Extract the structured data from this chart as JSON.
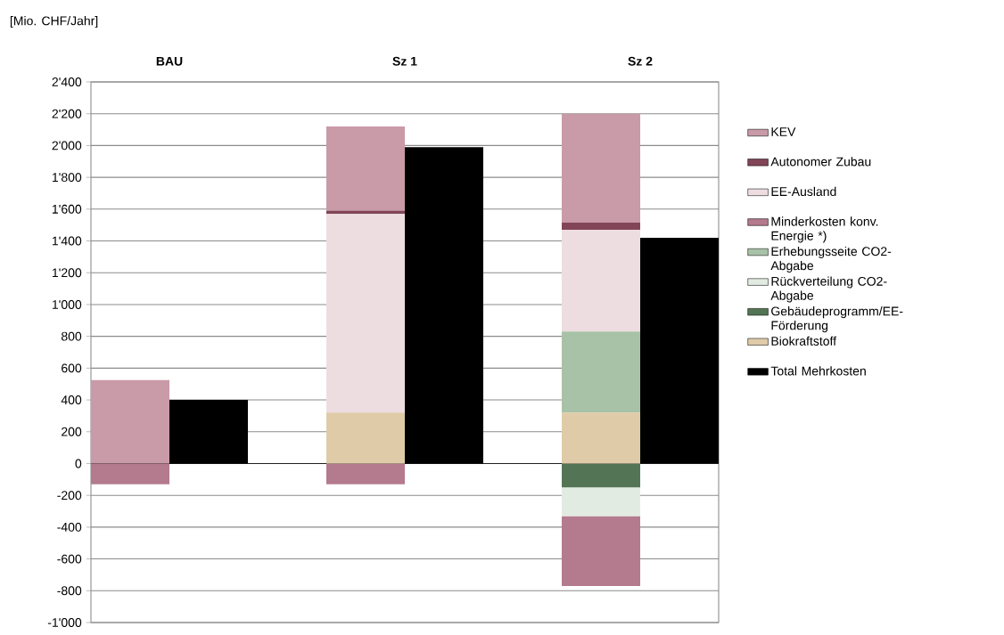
{
  "chart_data": {
    "type": "bar",
    "stacked": true,
    "ylabel": "[Mio. CHF/Jahr]",
    "categories": [
      "BAU",
      null,
      null,
      "Sz 1",
      null,
      null,
      "Sz 2",
      null
    ],
    "series": [
      {
        "name": "Biokraftstoff",
        "color": "#dfcba8",
        "values": [
          null,
          null,
          null,
          320,
          null,
          null,
          320,
          null
        ]
      },
      {
        "name": "Gebäudeprogramm/EE-Förderung",
        "color": "#547555",
        "values": [
          null,
          null,
          null,
          null,
          null,
          null,
          -150,
          null
        ]
      },
      {
        "name": "Rückverteilung CO2-Abgabe",
        "color": "#e2ebe2",
        "values": [
          null,
          null,
          null,
          null,
          null,
          null,
          -180,
          null
        ]
      },
      {
        "name": "Erhebungsseite CO2-Abgabe",
        "color": "#a8c2a8",
        "values": [
          null,
          null,
          null,
          null,
          null,
          null,
          510,
          null
        ]
      },
      {
        "name": "Minderkosten konv. Energie *)",
        "color": "#b47a8e",
        "values": [
          -130,
          null,
          null,
          -130,
          null,
          null,
          -440,
          null
        ]
      },
      {
        "name": "EE-Ausland",
        "color": "#eddde1",
        "values": [
          null,
          null,
          null,
          1250,
          null,
          null,
          640,
          null
        ]
      },
      {
        "name": "Autonomer Zubau",
        "color": "#824558",
        "values": [
          null,
          null,
          null,
          20,
          null,
          null,
          45,
          null
        ]
      },
      {
        "name": "KEV",
        "color": "#c99aa8",
        "values": [
          525,
          null,
          null,
          530,
          null,
          null,
          685,
          null
        ]
      },
      {
        "name": "Total Mehrkosten",
        "color": "#000000",
        "values": [
          null,
          400,
          null,
          null,
          1990,
          null,
          null,
          1420
        ]
      }
    ],
    "ylim": [
      -1000,
      2400
    ],
    "yticks": [
      {
        "value": -1000,
        "label": "-1'000"
      },
      -800,
      -600,
      -400,
      -200,
      0,
      200,
      400,
      600,
      800,
      {
        "value": 1000,
        "label": "1'000"
      },
      {
        "value": 1200,
        "label": "1'200"
      },
      {
        "value": 1400,
        "label": "1'400"
      },
      {
        "value": 1600,
        "label": "1'600"
      },
      {
        "value": 1800,
        "label": "1'800"
      },
      {
        "value": 2000,
        "label": "2'000"
      },
      {
        "value": 2200,
        "label": "2'200"
      },
      {
        "value": 2400,
        "label": "2'400"
      }
    ],
    "grid": "y",
    "legend": "right"
  }
}
